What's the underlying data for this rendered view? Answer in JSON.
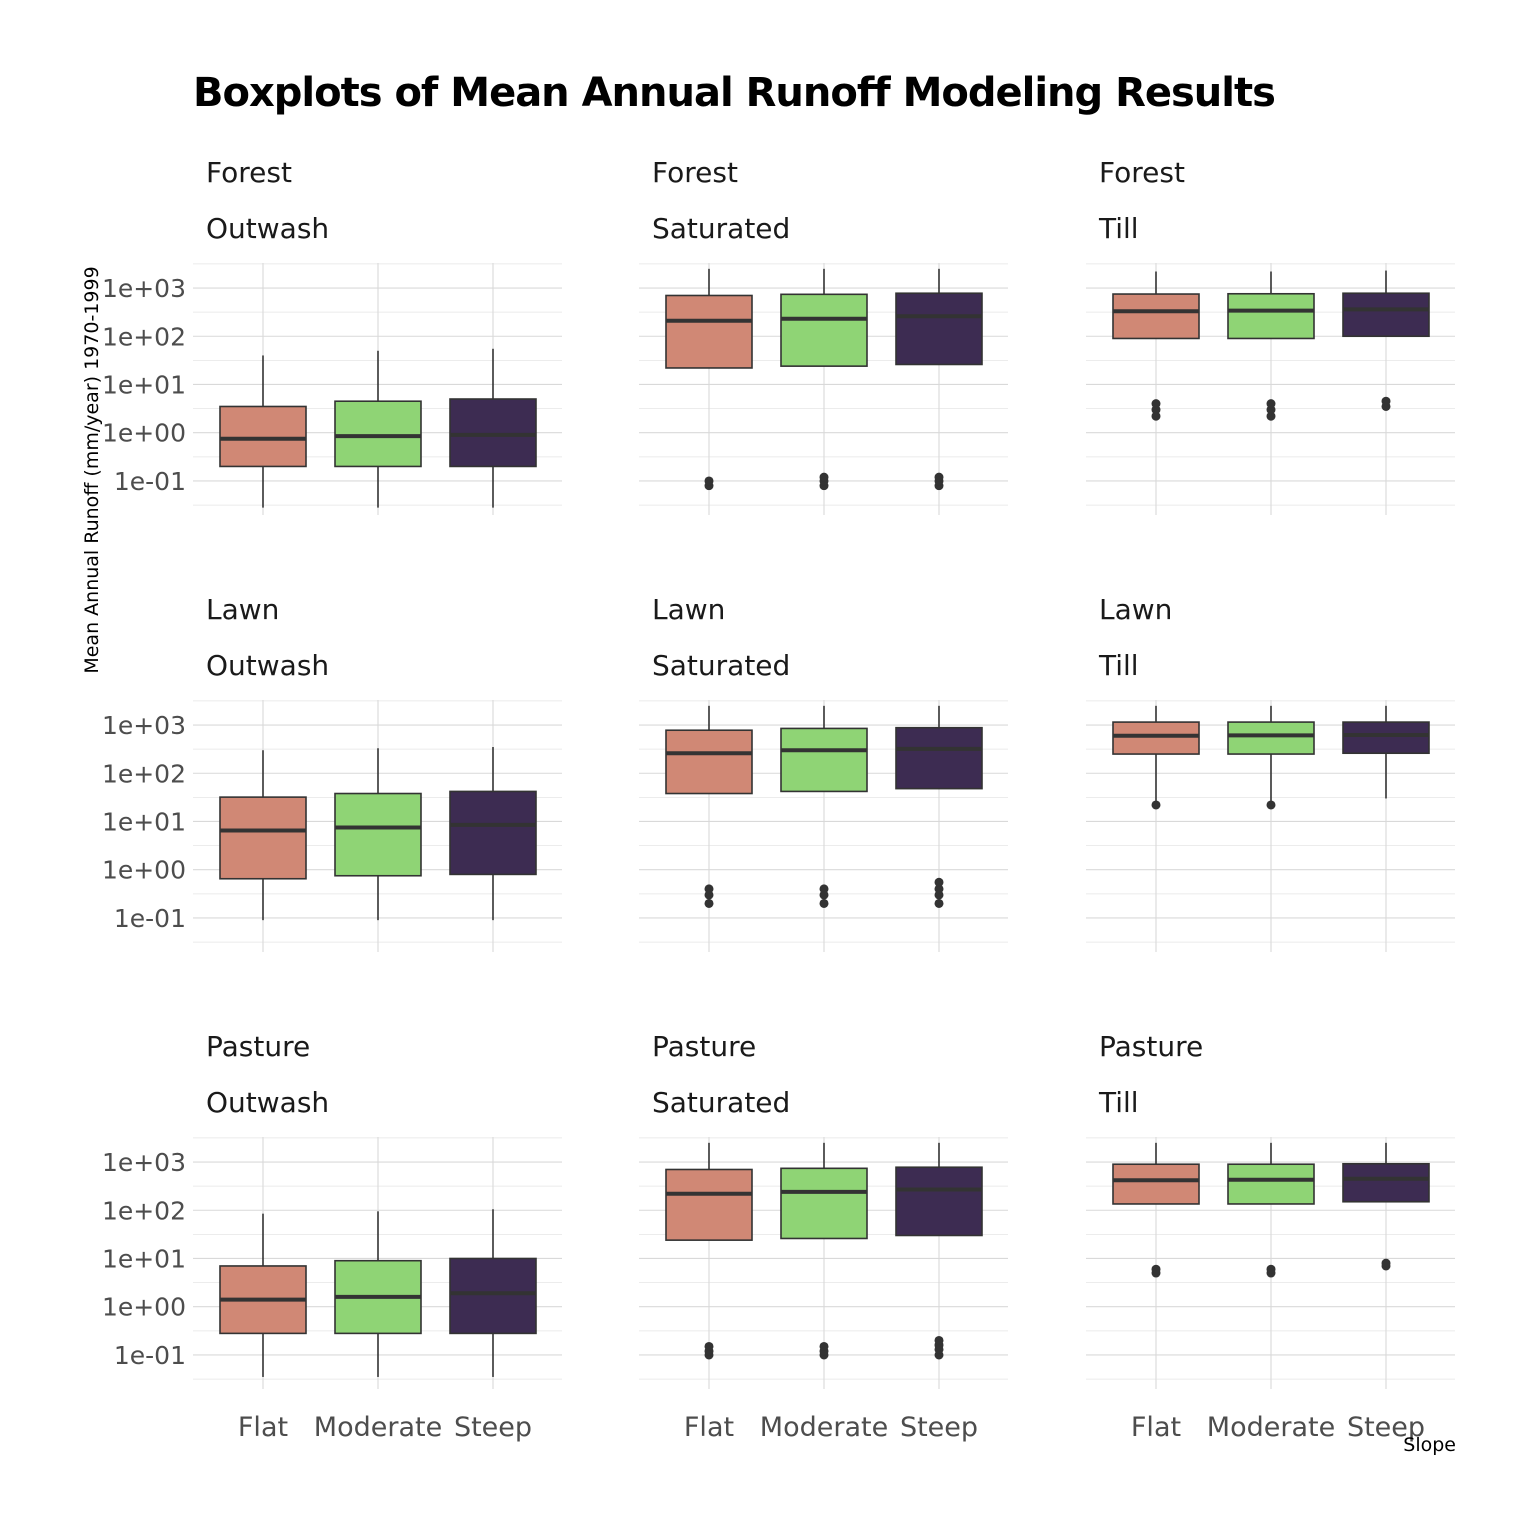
{
  "chart_data": {
    "type": "boxplot",
    "title": "Boxplots of Mean Annual Runoff Modeling Results",
    "xlabel": "Slope",
    "ylabel": "Mean Annual Runoff (mm/year) 1970-1999",
    "y_scale": "log10",
    "ylim": [
      0.025,
      3000
    ],
    "y_ticks": [
      "1e-01",
      "1e+00",
      "1e+01",
      "1e+02",
      "1e+03"
    ],
    "categories": [
      "Flat",
      "Moderate",
      "Steep"
    ],
    "colors": {
      "Flat": "#D08875",
      "Moderate": "#8FD475",
      "Steep": "#3D2C52"
    },
    "grid": true,
    "facets": [
      {
        "land": "Forest",
        "soil": "Outwash",
        "boxes": [
          {
            "slope": "Flat",
            "whisker_low": 0.028,
            "q1": 0.2,
            "median": 0.75,
            "q3": 3.5,
            "whisker_high": 40,
            "outliers": []
          },
          {
            "slope": "Moderate",
            "whisker_low": 0.028,
            "q1": 0.2,
            "median": 0.85,
            "q3": 4.5,
            "whisker_high": 50,
            "outliers": []
          },
          {
            "slope": "Steep",
            "whisker_low": 0.028,
            "q1": 0.2,
            "median": 0.9,
            "q3": 5.0,
            "whisker_high": 55,
            "outliers": []
          }
        ]
      },
      {
        "land": "Forest",
        "soil": "Saturated",
        "boxes": [
          {
            "slope": "Flat",
            "whisker_low": 22,
            "q1": 22,
            "median": 210,
            "q3": 700,
            "whisker_high": 2500,
            "outliers": [
              0.08,
              0.1
            ]
          },
          {
            "slope": "Moderate",
            "whisker_low": 24,
            "q1": 24,
            "median": 230,
            "q3": 740,
            "whisker_high": 2500,
            "outliers": [
              0.08,
              0.1,
              0.12
            ]
          },
          {
            "slope": "Steep",
            "whisker_low": 26,
            "q1": 26,
            "median": 260,
            "q3": 780,
            "whisker_high": 2500,
            "outliers": [
              0.08,
              0.1,
              0.12
            ]
          }
        ]
      },
      {
        "land": "Forest",
        "soil": "Till",
        "boxes": [
          {
            "slope": "Flat",
            "whisker_low": 90,
            "q1": 90,
            "median": 330,
            "q3": 750,
            "whisker_high": 2200,
            "outliers": [
              2.2,
              3.0,
              4.0
            ]
          },
          {
            "slope": "Moderate",
            "whisker_low": 90,
            "q1": 90,
            "median": 340,
            "q3": 760,
            "whisker_high": 2200,
            "outliers": [
              2.2,
              3.0,
              4.0
            ]
          },
          {
            "slope": "Steep",
            "whisker_low": 100,
            "q1": 100,
            "median": 360,
            "q3": 780,
            "whisker_high": 2300,
            "outliers": [
              3.5,
              4.5
            ]
          }
        ]
      },
      {
        "land": "Lawn",
        "soil": "Outwash",
        "boxes": [
          {
            "slope": "Flat",
            "whisker_low": 0.09,
            "q1": 0.65,
            "median": 6.5,
            "q3": 32,
            "whisker_high": 300,
            "outliers": []
          },
          {
            "slope": "Moderate",
            "whisker_low": 0.09,
            "q1": 0.75,
            "median": 7.5,
            "q3": 38,
            "whisker_high": 330,
            "outliers": []
          },
          {
            "slope": "Steep",
            "whisker_low": 0.09,
            "q1": 0.8,
            "median": 8.5,
            "q3": 42,
            "whisker_high": 350,
            "outliers": []
          }
        ]
      },
      {
        "land": "Lawn",
        "soil": "Saturated",
        "boxes": [
          {
            "slope": "Flat",
            "whisker_low": 38,
            "q1": 38,
            "median": 260,
            "q3": 780,
            "whisker_high": 2500,
            "outliers": [
              0.2,
              0.3,
              0.4
            ]
          },
          {
            "slope": "Moderate",
            "whisker_low": 42,
            "q1": 42,
            "median": 300,
            "q3": 850,
            "whisker_high": 2500,
            "outliers": [
              0.2,
              0.3,
              0.4
            ]
          },
          {
            "slope": "Steep",
            "whisker_low": 48,
            "q1": 48,
            "median": 320,
            "q3": 880,
            "whisker_high": 2500,
            "outliers": [
              0.2,
              0.3,
              0.4,
              0.55
            ]
          }
        ]
      },
      {
        "land": "Lawn",
        "soil": "Till",
        "boxes": [
          {
            "slope": "Flat",
            "whisker_low": 24,
            "q1": 250,
            "median": 600,
            "q3": 1150,
            "whisker_high": 2500,
            "outliers": [
              22
            ]
          },
          {
            "slope": "Moderate",
            "whisker_low": 24,
            "q1": 250,
            "median": 610,
            "q3": 1150,
            "whisker_high": 2500,
            "outliers": [
              22
            ]
          },
          {
            "slope": "Steep",
            "whisker_low": 30,
            "q1": 260,
            "median": 620,
            "q3": 1150,
            "whisker_high": 2500,
            "outliers": []
          }
        ]
      },
      {
        "land": "Pasture",
        "soil": "Outwash",
        "boxes": [
          {
            "slope": "Flat",
            "whisker_low": 0.035,
            "q1": 0.28,
            "median": 1.4,
            "q3": 7.0,
            "whisker_high": 85,
            "outliers": []
          },
          {
            "slope": "Moderate",
            "whisker_low": 0.035,
            "q1": 0.28,
            "median": 1.6,
            "q3": 9.0,
            "whisker_high": 95,
            "outliers": []
          },
          {
            "slope": "Steep",
            "whisker_low": 0.035,
            "q1": 0.28,
            "median": 1.9,
            "q3": 10,
            "whisker_high": 105,
            "outliers": []
          }
        ]
      },
      {
        "land": "Pasture",
        "soil": "Saturated",
        "boxes": [
          {
            "slope": "Flat",
            "whisker_low": 24,
            "q1": 24,
            "median": 220,
            "q3": 700,
            "whisker_high": 2500,
            "outliers": [
              0.1,
              0.12,
              0.15
            ]
          },
          {
            "slope": "Moderate",
            "whisker_low": 26,
            "q1": 26,
            "median": 240,
            "q3": 740,
            "whisker_high": 2500,
            "outliers": [
              0.1,
              0.12,
              0.15
            ]
          },
          {
            "slope": "Steep",
            "whisker_low": 30,
            "q1": 30,
            "median": 270,
            "q3": 780,
            "whisker_high": 2500,
            "outliers": [
              0.1,
              0.13,
              0.16,
              0.2
            ]
          }
        ]
      },
      {
        "land": "Pasture",
        "soil": "Till",
        "boxes": [
          {
            "slope": "Flat",
            "whisker_low": 135,
            "q1": 135,
            "median": 420,
            "q3": 900,
            "whisker_high": 2500,
            "outliers": [
              5.0,
              6.0
            ]
          },
          {
            "slope": "Moderate",
            "whisker_low": 135,
            "q1": 135,
            "median": 430,
            "q3": 900,
            "whisker_high": 2500,
            "outliers": [
              5.0,
              6.0
            ]
          },
          {
            "slope": "Steep",
            "whisker_low": 150,
            "q1": 150,
            "median": 450,
            "q3": 920,
            "whisker_high": 2500,
            "outliers": [
              7.0,
              8.0
            ]
          }
        ]
      }
    ]
  }
}
